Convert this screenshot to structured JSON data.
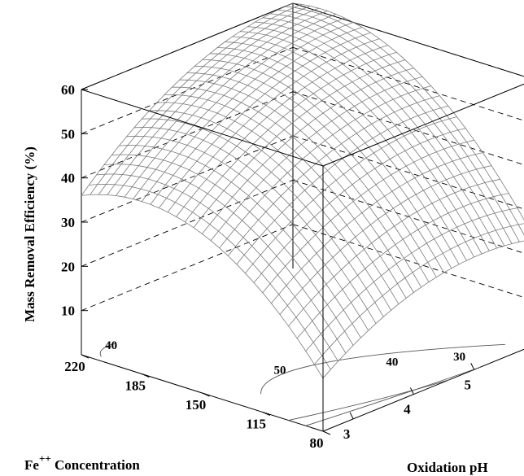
{
  "chart_data": {
    "type": "surface3d",
    "title": "",
    "zlabel": "Mass Removal Efficiency (%)",
    "xlabel_parts": {
      "base": "Fe",
      "superscript": "++",
      "rest": " Concentration"
    },
    "ylabel": "Oxidation pH",
    "z_ticks": [
      "60",
      "50",
      "40",
      "30",
      "20",
      "10"
    ],
    "x_ticks": [
      "220",
      "185",
      "150",
      "115",
      "80"
    ],
    "y_ticks": [
      "3",
      "4",
      "5"
    ],
    "xlim": [
      80,
      220
    ],
    "ylim": [
      2.5,
      6
    ],
    "zlim": [
      0,
      60
    ],
    "surface_corners": [
      {
        "fe": 220,
        "ph": 2.5,
        "efficiency": 36
      },
      {
        "fe": 220,
        "ph": 6.0,
        "efficiency": 60
      },
      {
        "fe": 80,
        "ph": 2.5,
        "efficiency": 12
      },
      {
        "fe": 80,
        "ph": 6.0,
        "efficiency": 24
      }
    ],
    "contours": [
      {
        "level": 50,
        "label": "50"
      },
      {
        "level": 40,
        "label": "40"
      },
      {
        "level": 40,
        "label": "40"
      },
      {
        "level": 30,
        "label": "30"
      }
    ],
    "grid": false
  }
}
